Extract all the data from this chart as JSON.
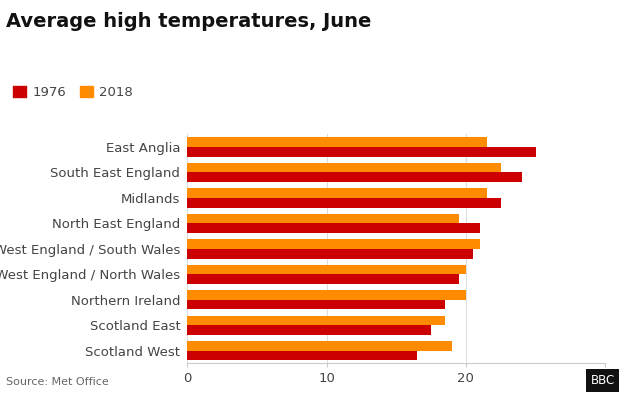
{
  "title": "Average high temperatures, June",
  "categories": [
    "East Anglia",
    "South East England",
    "Midlands",
    "North East England",
    "South West England / South Wales",
    "North West England / North Wales",
    "Northern Ireland",
    "Scotland East",
    "Scotland West"
  ],
  "values_1976": [
    25.0,
    24.0,
    22.5,
    21.0,
    20.5,
    19.5,
    18.5,
    17.5,
    16.5
  ],
  "values_2018": [
    21.5,
    22.5,
    21.5,
    19.5,
    21.0,
    20.0,
    20.0,
    18.5,
    19.0
  ],
  "color_1976": "#cc0000",
  "color_2018": "#ff8c00",
  "xlim": [
    0,
    30
  ],
  "xticks": [
    0,
    10,
    20,
    30
  ],
  "source_text": "Source: Met Office",
  "legend_labels": [
    "1976",
    "2018"
  ],
  "background_color": "#ffffff",
  "title_fontsize": 14,
  "tick_fontsize": 9.5,
  "bar_height": 0.38
}
